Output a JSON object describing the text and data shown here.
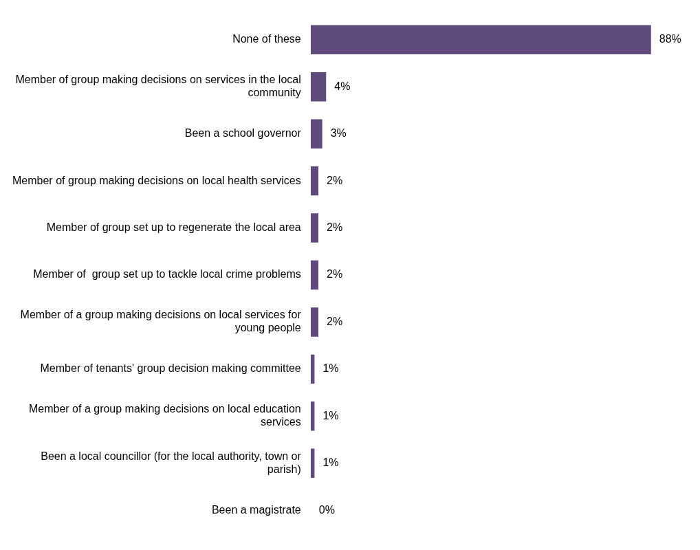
{
  "chart_data": {
    "type": "bar",
    "orientation": "horizontal",
    "categories": [
      "None of these",
      "Member of group making decisions on services in the local community",
      "Been a school governor",
      "Member of group making decisions on local health services",
      "Member of group set up to regenerate the local area",
      "Member of  group set up to tackle local crime problems",
      "Member of a group making decisions on local services for young people",
      "Member of tenants' group decision making committee",
      "Member of a group making decisions on local education services",
      "Been a local councillor (for the local authority, town or parish)",
      "Been a magistrate"
    ],
    "values": [
      88,
      4,
      3,
      2,
      2,
      2,
      2,
      1,
      1,
      1,
      0
    ],
    "value_labels": [
      "88%",
      "4%",
      "3%",
      "2%",
      "2%",
      "2%",
      "2%",
      "1%",
      "1%",
      "1%",
      "0%"
    ],
    "color": "#604a7b",
    "grid": false,
    "legend": false
  }
}
